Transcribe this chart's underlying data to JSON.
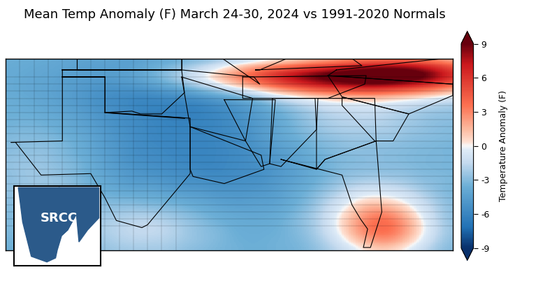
{
  "title": "Mean Temp Anomaly (F) March 24-30, 2024 vs 1991-2020 Normals",
  "colorbar_label": "Temperature Anomaly (F)",
  "colorbar_ticks": [
    -9,
    -6,
    -3,
    0,
    3,
    6,
    9
  ],
  "vmin": -9,
  "vmax": 9,
  "figsize": [
    8.0,
    4.09
  ],
  "dpi": 100,
  "title_fontsize": 13,
  "background_color": "#ffffff",
  "colormap_colors": [
    [
      0.0,
      "#08306b"
    ],
    [
      0.1,
      "#2171b5"
    ],
    [
      0.3,
      "#6baed6"
    ],
    [
      0.42,
      "#c6dbef"
    ],
    [
      0.48,
      "#deebf7"
    ],
    [
      0.5,
      "#f7f7f7"
    ],
    [
      0.52,
      "#fee0d2"
    ],
    [
      0.58,
      "#fcbba1"
    ],
    [
      0.7,
      "#fc7050"
    ],
    [
      0.9,
      "#cb181d"
    ],
    [
      1.0,
      "#67000d"
    ]
  ],
  "lon_min": -107,
  "lon_max": -75.5,
  "lat_min": 24.3,
  "lat_max": 37.8,
  "seed": 42,
  "srcc_color": "#2b5a8a"
}
